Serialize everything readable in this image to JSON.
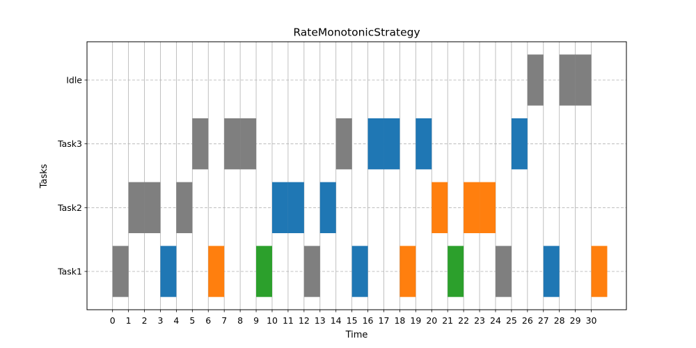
{
  "chart_data": {
    "type": "bar",
    "subtype": "gantt",
    "title": "RateMonotonicStrategy",
    "xlabel": "Time",
    "ylabel": "Tasks",
    "categories": [
      "Task1",
      "Task2",
      "Task3",
      "Idle"
    ],
    "xticks": [
      0,
      1,
      2,
      3,
      4,
      5,
      6,
      7,
      8,
      9,
      10,
      11,
      12,
      13,
      14,
      15,
      16,
      17,
      18,
      19,
      20,
      21,
      22,
      23,
      24,
      25,
      26,
      27,
      28,
      29,
      30
    ],
    "xlim": [
      -1.6,
      32.2
    ],
    "ylim": [
      -0.6,
      3.6
    ],
    "grid": {
      "x": "solid",
      "y": "dashed"
    },
    "colors": {
      "gray": "#7f7f7f",
      "blue": "#1f77b4",
      "orange": "#ff7f0e",
      "green": "#2ca02c"
    },
    "segments": [
      {
        "task": "Task1",
        "start": 0,
        "end": 1,
        "color": "gray"
      },
      {
        "task": "Task2",
        "start": 1,
        "end": 3,
        "color": "gray"
      },
      {
        "task": "Task1",
        "start": 3,
        "end": 4,
        "color": "blue"
      },
      {
        "task": "Task2",
        "start": 4,
        "end": 5,
        "color": "gray"
      },
      {
        "task": "Task3",
        "start": 5,
        "end": 6,
        "color": "gray"
      },
      {
        "task": "Task1",
        "start": 6,
        "end": 7,
        "color": "orange"
      },
      {
        "task": "Task3",
        "start": 7,
        "end": 9,
        "color": "gray"
      },
      {
        "task": "Task1",
        "start": 9,
        "end": 10,
        "color": "green"
      },
      {
        "task": "Task2",
        "start": 10,
        "end": 12,
        "color": "blue"
      },
      {
        "task": "Task1",
        "start": 12,
        "end": 13,
        "color": "gray"
      },
      {
        "task": "Task2",
        "start": 13,
        "end": 14,
        "color": "blue"
      },
      {
        "task": "Task3",
        "start": 14,
        "end": 15,
        "color": "gray"
      },
      {
        "task": "Task1",
        "start": 15,
        "end": 16,
        "color": "blue"
      },
      {
        "task": "Task3",
        "start": 16,
        "end": 18,
        "color": "blue"
      },
      {
        "task": "Task1",
        "start": 18,
        "end": 19,
        "color": "orange"
      },
      {
        "task": "Task3",
        "start": 19,
        "end": 20,
        "color": "blue"
      },
      {
        "task": "Task2",
        "start": 20,
        "end": 21,
        "color": "orange"
      },
      {
        "task": "Task1",
        "start": 21,
        "end": 22,
        "color": "green"
      },
      {
        "task": "Task2",
        "start": 22,
        "end": 24,
        "color": "orange"
      },
      {
        "task": "Task1",
        "start": 24,
        "end": 25,
        "color": "gray"
      },
      {
        "task": "Task3",
        "start": 25,
        "end": 26,
        "color": "blue"
      },
      {
        "task": "Idle",
        "start": 26,
        "end": 27,
        "color": "gray"
      },
      {
        "task": "Task1",
        "start": 27,
        "end": 28,
        "color": "blue"
      },
      {
        "task": "Idle",
        "start": 28,
        "end": 30,
        "color": "gray"
      },
      {
        "task": "Task1",
        "start": 30,
        "end": 31,
        "color": "orange"
      }
    ]
  }
}
